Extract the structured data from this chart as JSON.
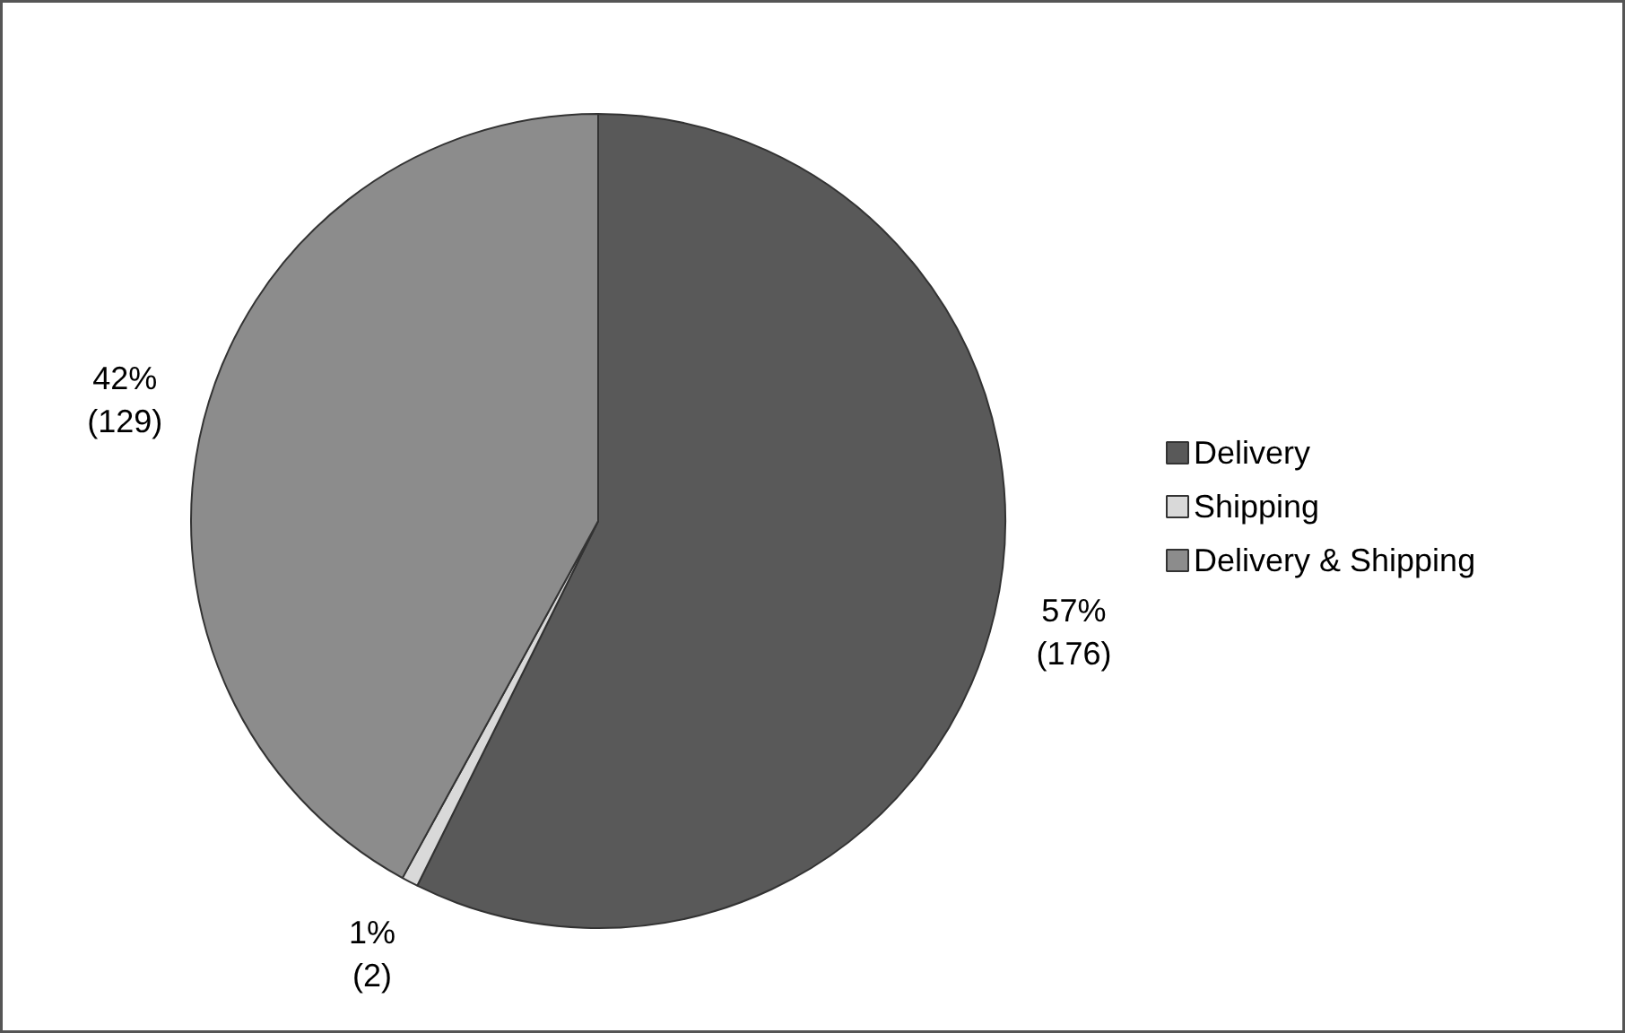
{
  "chart_data": {
    "type": "pie",
    "categories": [
      "Delivery",
      "Shipping",
      "Delivery & Shipping"
    ],
    "values": [
      176,
      2,
      129
    ],
    "colors": [
      "#595959",
      "#d9d9d9",
      "#8c8c8c"
    ],
    "value_labels": [
      "57%\n(176)",
      "1%\n(2)",
      "42%\n(129)"
    ],
    "legend": "right"
  }
}
